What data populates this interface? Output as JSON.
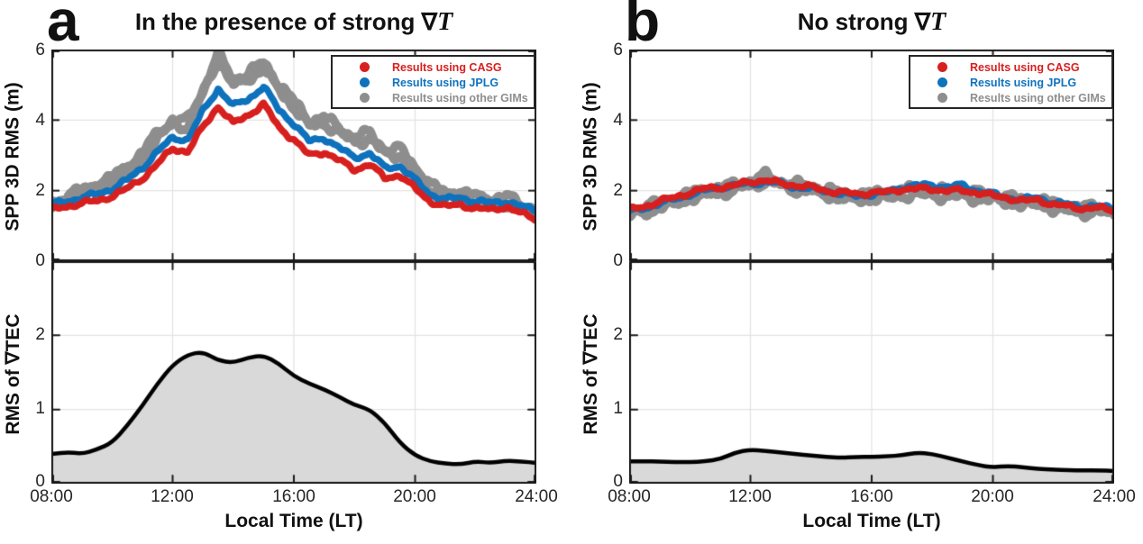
{
  "figure": {
    "panels": [
      {
        "letter": "a",
        "title": "In the presence of strong",
        "title_nabla": "∇",
        "title_var": "T"
      },
      {
        "letter": "b",
        "title": "No strong",
        "title_nabla": "∇",
        "title_var": "T"
      }
    ],
    "legend": {
      "items": [
        {
          "label": "Results using CASG",
          "color": "#d7201f"
        },
        {
          "label": "Results using JPLG",
          "color": "#0f72bd"
        },
        {
          "label": "Results using other GIMs",
          "color": "#8e8e8e"
        }
      ]
    },
    "axes": {
      "top_ylabel": "SPP 3D RMS (m)",
      "bottom_ylabel": "RMS of ∇TEC",
      "xlabel": "Local Time (LT)",
      "x_ticks": [
        "08:00",
        "12:00",
        "16:00",
        "20:00",
        "24:00"
      ],
      "top_yticks": [
        "0",
        "2",
        "4",
        "6"
      ],
      "bottom_yticks": [
        "0",
        "1",
        "2"
      ]
    },
    "colors": {
      "casg": "#d7201f",
      "jplg": "#0f72bd",
      "other_gims": "#8e8e8e",
      "area_fill": "#d9d9d9",
      "area_line": "#000000",
      "grid": "#e2e2e2",
      "axis": "#1a1a1a"
    }
  },
  "chart_data": [
    {
      "type": "scatter",
      "panel": "a",
      "position": "top",
      "title": "In the presence of strong ∇T",
      "ylabel": "SPP 3D RMS (m)",
      "xlabel": "Local Time (LT)",
      "xlim": [
        8,
        24
      ],
      "ylim": [
        0,
        6
      ],
      "xtick_hours": [
        8,
        12,
        16,
        20,
        24
      ],
      "xtick_labels": [
        "08:00",
        "12:00",
        "16:00",
        "20:00",
        "24:00"
      ],
      "ytick_values": [
        0,
        2,
        4,
        6
      ],
      "grid_x": [
        12,
        16,
        20
      ],
      "grid_y": [
        2,
        4
      ],
      "legend_position": "top-right",
      "x_hours": [
        8,
        8.5,
        9,
        9.5,
        10,
        10.5,
        11,
        11.5,
        12,
        12.5,
        13,
        13.5,
        14,
        14.5,
        15,
        15.5,
        16,
        16.5,
        17,
        17.5,
        18,
        18.5,
        19,
        19.5,
        20,
        20.5,
        21,
        21.5,
        22,
        22.5,
        23,
        23.5,
        24
      ],
      "series": [
        {
          "name": "Results using other GIMs",
          "color": "#8e8e8e",
          "band": "wide",
          "values": [
            1.6,
            1.75,
            1.95,
            2.1,
            2.3,
            2.6,
            3.0,
            3.55,
            3.95,
            3.9,
            4.8,
            5.8,
            5.05,
            5.25,
            5.55,
            4.95,
            4.45,
            3.9,
            4.0,
            3.7,
            3.45,
            3.55,
            3.1,
            3.1,
            2.6,
            2.1,
            1.85,
            1.9,
            1.75,
            1.7,
            1.75,
            1.55,
            1.4
          ]
        },
        {
          "name": "Results using JPLG",
          "color": "#0f72bd",
          "band": "normal",
          "values": [
            1.6,
            1.7,
            1.8,
            1.9,
            2.05,
            2.3,
            2.65,
            3.1,
            3.5,
            3.45,
            4.25,
            4.9,
            4.4,
            4.6,
            4.95,
            4.3,
            3.9,
            3.4,
            3.5,
            3.2,
            2.95,
            3.05,
            2.65,
            2.7,
            2.3,
            1.9,
            1.75,
            1.8,
            1.7,
            1.65,
            1.7,
            1.55,
            1.45
          ]
        },
        {
          "name": "Results using CASG",
          "color": "#d7201f",
          "band": "normal",
          "values": [
            1.45,
            1.55,
            1.65,
            1.7,
            1.85,
            2.05,
            2.35,
            2.75,
            3.2,
            3.1,
            3.8,
            4.4,
            3.9,
            4.15,
            4.45,
            3.8,
            3.45,
            3.0,
            3.1,
            2.85,
            2.6,
            2.75,
            2.35,
            2.45,
            2.05,
            1.7,
            1.55,
            1.6,
            1.5,
            1.45,
            1.55,
            1.35,
            1.2
          ]
        }
      ]
    },
    {
      "type": "area",
      "panel": "a",
      "position": "bottom",
      "ylabel": "RMS of ∇TEC",
      "xlabel": "Local Time (LT)",
      "xlim": [
        8,
        24
      ],
      "ylim": [
        0,
        3
      ],
      "xtick_hours": [
        8,
        12,
        16,
        20,
        24
      ],
      "xtick_labels": [
        "08:00",
        "12:00",
        "16:00",
        "20:00",
        "24:00"
      ],
      "ytick_values": [
        0,
        1,
        2
      ],
      "grid_x": [
        12,
        16,
        20
      ],
      "grid_y": [
        1,
        2
      ],
      "fill_color": "#d9d9d9",
      "line_color": "#000000",
      "x_hours": [
        8,
        8.5,
        9,
        9.5,
        10,
        10.5,
        11,
        11.5,
        12,
        12.5,
        13,
        13.5,
        14,
        14.5,
        15,
        15.5,
        16,
        16.5,
        17,
        17.5,
        18,
        18.5,
        19,
        19.5,
        20,
        20.5,
        21,
        21.5,
        22,
        22.5,
        23,
        23.5,
        24
      ],
      "values": [
        0.4,
        0.43,
        0.4,
        0.46,
        0.55,
        0.78,
        1.05,
        1.35,
        1.6,
        1.74,
        1.78,
        1.66,
        1.63,
        1.7,
        1.73,
        1.62,
        1.45,
        1.35,
        1.27,
        1.17,
        1.06,
        1.0,
        0.82,
        0.55,
        0.38,
        0.3,
        0.27,
        0.26,
        0.3,
        0.28,
        0.31,
        0.3,
        0.28
      ]
    },
    {
      "type": "scatter",
      "panel": "b",
      "position": "top",
      "title": "No strong ∇T",
      "ylabel": "SPP 3D RMS (m)",
      "xlabel": "Local Time (LT)",
      "xlim": [
        8,
        24
      ],
      "ylim": [
        0,
        6
      ],
      "xtick_hours": [
        8,
        12,
        16,
        20,
        24
      ],
      "xtick_labels": [
        "08:00",
        "12:00",
        "16:00",
        "20:00",
        "24:00"
      ],
      "ytick_values": [
        0,
        2,
        4,
        6
      ],
      "grid_x": [
        12,
        16,
        20
      ],
      "grid_y": [
        2,
        4
      ],
      "legend_position": "top-right",
      "x_hours": [
        8,
        8.5,
        9,
        9.5,
        10,
        10.5,
        11,
        11.5,
        12,
        12.5,
        13,
        13.5,
        14,
        14.5,
        15,
        15.5,
        16,
        16.5,
        17,
        17.5,
        18,
        18.5,
        19,
        19.5,
        20,
        20.5,
        21,
        21.5,
        22,
        22.5,
        23,
        23.5,
        24
      ],
      "series": [
        {
          "name": "Results using other GIMs",
          "color": "#8e8e8e",
          "band": "wide",
          "values": [
            1.35,
            1.45,
            1.6,
            1.7,
            1.85,
            1.95,
            2.0,
            2.1,
            2.2,
            2.35,
            2.2,
            2.1,
            2.05,
            1.95,
            1.85,
            1.8,
            1.85,
            1.85,
            1.95,
            1.95,
            1.95,
            1.9,
            1.9,
            1.85,
            1.8,
            1.75,
            1.65,
            1.7,
            1.55,
            1.5,
            1.45,
            1.45,
            1.4
          ]
        },
        {
          "name": "Results using JPLG",
          "color": "#0f72bd",
          "band": "normal",
          "values": [
            1.4,
            1.5,
            1.65,
            1.75,
            1.9,
            2.0,
            2.1,
            2.15,
            2.2,
            2.25,
            2.2,
            2.1,
            2.05,
            2.0,
            1.9,
            1.85,
            1.9,
            1.95,
            2.1,
            2.15,
            2.15,
            2.1,
            2.15,
            2.0,
            1.9,
            1.8,
            1.75,
            1.8,
            1.65,
            1.6,
            1.55,
            1.55,
            1.5
          ]
        },
        {
          "name": "Results using CASG",
          "color": "#d7201f",
          "band": "normal",
          "values": [
            1.45,
            1.55,
            1.7,
            1.8,
            1.95,
            2.05,
            2.1,
            2.15,
            2.25,
            2.3,
            2.2,
            2.15,
            2.1,
            2.0,
            1.95,
            1.9,
            1.95,
            1.95,
            2.05,
            2.05,
            2.05,
            2.0,
            2.0,
            1.95,
            1.85,
            1.8,
            1.7,
            1.75,
            1.6,
            1.55,
            1.5,
            1.5,
            1.45
          ]
        }
      ]
    },
    {
      "type": "area",
      "panel": "b",
      "position": "bottom",
      "ylabel": "RMS of ∇TEC",
      "xlabel": "Local Time (LT)",
      "xlim": [
        8,
        24
      ],
      "ylim": [
        0,
        3
      ],
      "xtick_hours": [
        8,
        12,
        16,
        20,
        24
      ],
      "xtick_labels": [
        "08:00",
        "12:00",
        "16:00",
        "20:00",
        "24:00"
      ],
      "ytick_values": [
        0,
        1,
        2
      ],
      "grid_x": [
        12,
        16,
        20
      ],
      "grid_y": [
        1,
        2
      ],
      "fill_color": "#d9d9d9",
      "line_color": "#000000",
      "x_hours": [
        8,
        8.5,
        9,
        9.5,
        10,
        10.5,
        11,
        11.5,
        12,
        12.5,
        13,
        13.5,
        14,
        14.5,
        15,
        15.5,
        16,
        16.5,
        17,
        17.5,
        18,
        18.5,
        19,
        19.5,
        20,
        20.5,
        21,
        21.5,
        22,
        22.5,
        23,
        23.5,
        24
      ],
      "values": [
        0.3,
        0.3,
        0.3,
        0.29,
        0.29,
        0.3,
        0.33,
        0.42,
        0.46,
        0.44,
        0.42,
        0.4,
        0.38,
        0.36,
        0.35,
        0.36,
        0.36,
        0.37,
        0.38,
        0.42,
        0.4,
        0.35,
        0.3,
        0.25,
        0.22,
        0.24,
        0.22,
        0.2,
        0.19,
        0.18,
        0.18,
        0.18,
        0.17
      ]
    }
  ]
}
